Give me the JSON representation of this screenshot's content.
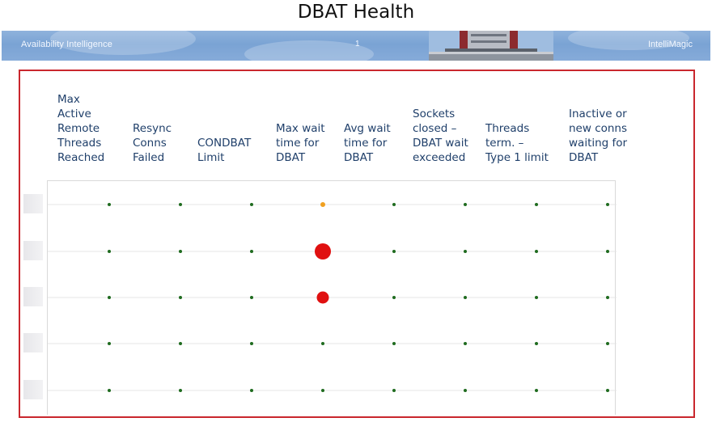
{
  "page": {
    "title": "DBAT Health"
  },
  "banner": {
    "left_text": "Availability Intelligence",
    "center_text": "1",
    "right_text": "IntelliMagic",
    "background_color": "#7aa3d4"
  },
  "frame": {
    "border_color": "#c9272d"
  },
  "chart_data": {
    "type": "scatter",
    "title": "",
    "columns": [
      "Max\nActive\nRemote\nThreads\nReached",
      "Resync\nConns\nFailed",
      "CONDBAT\nLimit",
      "Max wait\ntime for\nDBAT",
      "Avg wait\ntime for\nDBAT",
      "Sockets\nclosed –\nDBAT wait\nexceeded",
      "Threads\nterm. –\nType 1 limit",
      "Inactive or\nnew conns\nwaiting for\nDBAT"
    ],
    "row_count": 5,
    "status_colors": {
      "ok": "#1f6b1f",
      "warning": "#f0a020",
      "critical": "#e01010"
    },
    "cells": [
      [
        "ok",
        "ok",
        "ok",
        "warning",
        "ok",
        "ok",
        "ok",
        "ok"
      ],
      [
        "ok",
        "ok",
        "ok",
        "critical-large",
        "ok",
        "ok",
        "ok",
        "ok"
      ],
      [
        "ok",
        "ok",
        "ok",
        "critical",
        "ok",
        "ok",
        "ok",
        "ok"
      ],
      [
        "ok",
        "ok",
        "ok",
        "ok",
        "ok",
        "ok",
        "ok",
        "ok"
      ],
      [
        "ok",
        "ok",
        "ok",
        "ok",
        "ok",
        "ok",
        "ok",
        "ok"
      ]
    ],
    "grid": true
  }
}
